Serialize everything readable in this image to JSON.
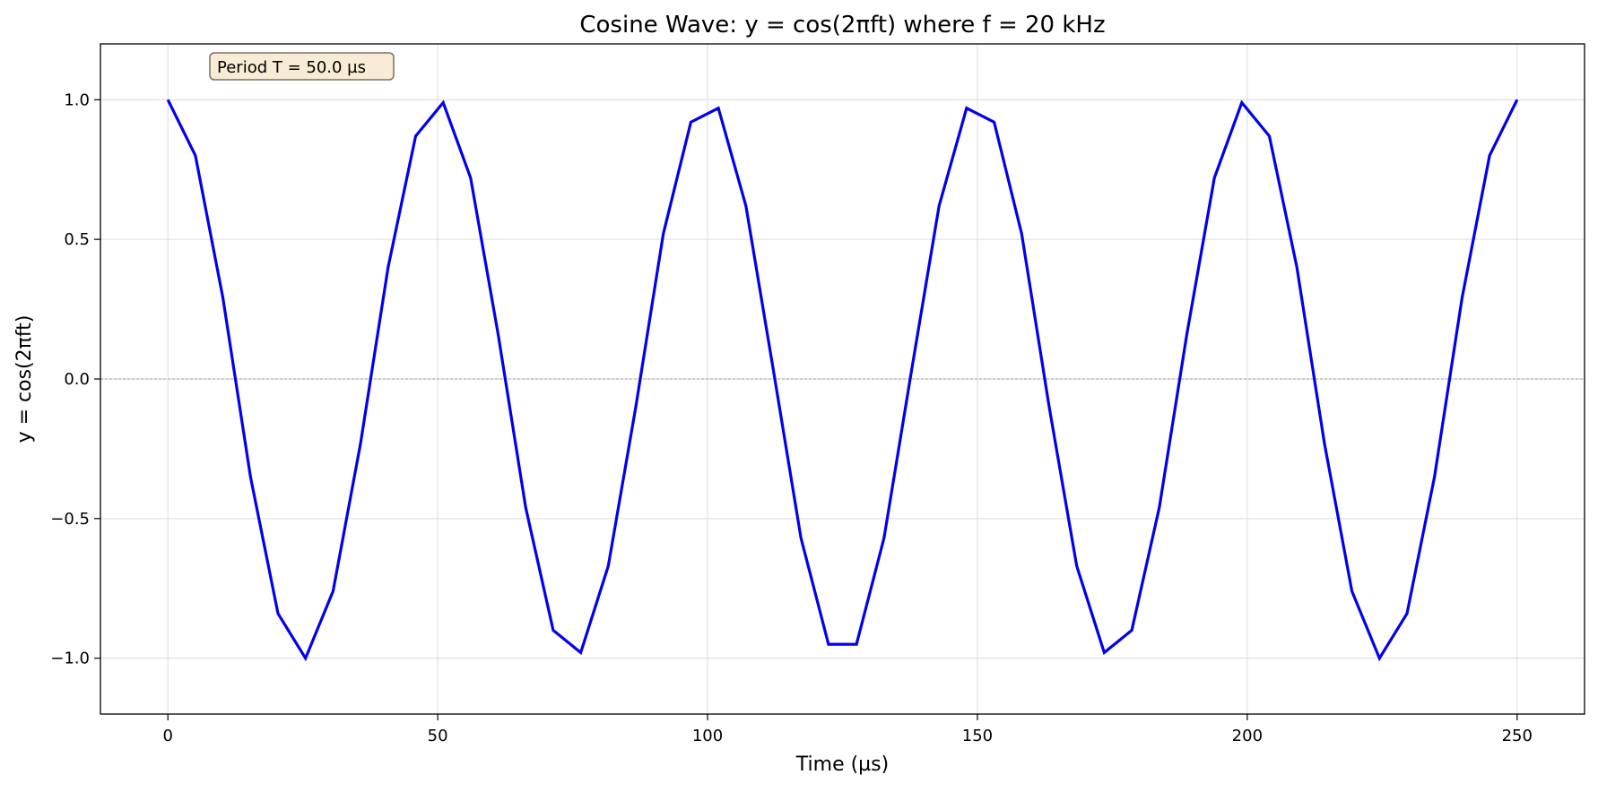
{
  "chart_data": {
    "type": "line",
    "title": "Cosine Wave: y = cos(2πft) where f = 20 kHz",
    "xlabel": "Time (µs)",
    "ylabel": "y = cos(2πft)",
    "xlim": [
      -12.5,
      262.5
    ],
    "ylim": [
      -1.2,
      1.2
    ],
    "xticks": [
      0,
      50,
      100,
      150,
      200,
      250
    ],
    "xtick_labels": [
      "0",
      "50",
      "100",
      "150",
      "200",
      "250"
    ],
    "yticks": [
      -1.0,
      -0.5,
      0.0,
      0.5,
      1.0
    ],
    "ytick_labels": [
      "−1.0",
      "−0.5",
      "0.0",
      "0.5",
      "1.0"
    ],
    "grid": true,
    "reference_line_y": 0,
    "annotation": "Period T = 50.0 µs",
    "series": [
      {
        "color": "#0000ee",
        "x": [
          0,
          5.1,
          10.2,
          15.3,
          20.4,
          25.5,
          30.6,
          35.7,
          40.8,
          45.9,
          51.0,
          56.1,
          61.2,
          66.3,
          71.4,
          76.5,
          81.6,
          86.7,
          91.8,
          96.9,
          102.0,
          107.1,
          112.2,
          117.3,
          122.4,
          127.6,
          132.7,
          137.8,
          142.9,
          148.0,
          153.1,
          158.2,
          163.3,
          168.4,
          173.5,
          178.6,
          183.7,
          188.8,
          193.9,
          199.0,
          204.1,
          209.2,
          214.3,
          219.4,
          224.5,
          229.6,
          234.7,
          239.8,
          244.9,
          250.0
        ],
        "y": [
          1.0,
          0.8,
          0.29,
          -0.35,
          -0.84,
          -1.0,
          -0.76,
          -0.23,
          0.4,
          0.87,
          0.99,
          0.72,
          0.16,
          -0.46,
          -0.9,
          -0.98,
          -0.67,
          -0.1,
          0.52,
          0.92,
          0.97,
          0.62,
          0.03,
          -0.57,
          -0.95,
          -0.95,
          -0.57,
          0.03,
          0.62,
          0.97,
          0.92,
          0.52,
          -0.1,
          -0.67,
          -0.98,
          -0.9,
          -0.46,
          0.16,
          0.72,
          0.99,
          0.87,
          0.4,
          -0.23,
          -0.76,
          -1.0,
          -0.84,
          -0.35,
          0.29,
          0.8,
          1.0
        ]
      }
    ]
  }
}
